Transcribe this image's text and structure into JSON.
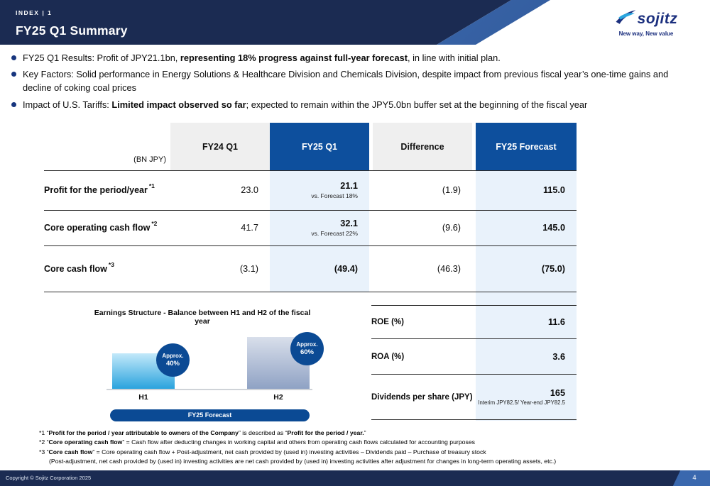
{
  "header": {
    "index_label": "INDEX | 1",
    "title": "FY25 Q1 Summary",
    "logo_text": "sojitz",
    "tagline": "New way, New value"
  },
  "bullets": [
    {
      "segments": [
        {
          "t": "FY25 Q1 Results: Profit of JPY21.1bn, "
        },
        {
          "t": "representing 18% progress against full-year forecast",
          "b": true
        },
        {
          "t": ", in line with initial plan."
        }
      ]
    },
    {
      "segments": [
        {
          "t": "Key Factors: Solid performance in Energy Solutions & Healthcare Division and Chemicals Division, despite impact from previous fiscal year’s one-time gains and decline of coking coal prices"
        }
      ]
    },
    {
      "segments": [
        {
          "t": "Impact of U.S. Tariffs: "
        },
        {
          "t": "Limited impact observed so far",
          "b": true
        },
        {
          "t": "; expected to remain within the JPY5.0bn buffer set at the beginning of the fiscal year"
        }
      ]
    }
  ],
  "table": {
    "unit_label": "(BN JPY)",
    "columns": [
      "FY24 Q1",
      "FY25 Q1",
      "Difference",
      "FY25 Forecast"
    ],
    "rows": [
      {
        "label": "Profit for the period/year",
        "note": "*1",
        "fy24": "23.0",
        "fy25": "21.1",
        "fy25_sub": "vs. Forecast 18%",
        "diff": "(1.9)",
        "forecast": "115.0"
      },
      {
        "label": "Core operating cash flow",
        "note": "*2",
        "fy24": "41.7",
        "fy25": "32.1",
        "fy25_sub": "vs. Forecast 22%",
        "diff": "(9.6)",
        "forecast": "145.0"
      },
      {
        "label": "Core cash flow",
        "note": "*3",
        "fy24": "(3.1)",
        "fy25": "(49.4)",
        "fy25_sub": "",
        "diff": "(46.3)",
        "forecast": "(75.0)"
      }
    ]
  },
  "metrics": [
    {
      "label": "ROE (%)",
      "value": "11.6",
      "sub": ""
    },
    {
      "label": "ROA (%)",
      "value": "3.6",
      "sub": ""
    },
    {
      "label": "Dividends per share (JPY)",
      "value": "165",
      "sub": "Interim JPY82.5/ Year-end JPY82.5"
    }
  ],
  "chart_data": {
    "type": "bar",
    "title": "Earnings Structure  - Balance between H1 and H2 of the fiscal year",
    "categories": [
      "H1",
      "H2"
    ],
    "values": [
      40,
      60
    ],
    "badges": [
      {
        "line1": "Approx.",
        "line2": "40%"
      },
      {
        "line1": "Approx.",
        "line2": "60%"
      }
    ],
    "footer_label": "FY25 Forecast",
    "ylim": [
      0,
      100
    ],
    "grid": false,
    "legend": "none"
  },
  "footnotes": [
    {
      "segments": [
        {
          "t": "*1 “"
        },
        {
          "t": "Profit for the period / year attributable to owners of the Company",
          "b": true
        },
        {
          "t": "” is described as “"
        },
        {
          "t": "Profit for the period / year.",
          "b": true
        },
        {
          "t": "”"
        }
      ]
    },
    {
      "segments": [
        {
          "t": "*2 “"
        },
        {
          "t": "Core operating cash flow",
          "b": true
        },
        {
          "t": "” = Cash flow after deducting changes in working capital and others from operating cash flows calculated for accounting purposes"
        }
      ]
    },
    {
      "segments": [
        {
          "t": "*3 “"
        },
        {
          "t": "Core cash flow",
          "b": true
        },
        {
          "t": "” = Core operating cash flow + Post-adjustment, net cash provided by (used in) investing activities – Dividends paid – Purchase of treasury stock"
        }
      ]
    },
    {
      "segments": [
        {
          "t": "(Post-adjustment, net cash provided by (used in) investing activities are net cash provided by (used in) investing activities after adjustment for changes in long-term operating assets, etc.)"
        }
      ]
    }
  ],
  "footer": {
    "copyright": "Copyright © Sojitz Corporation 2025",
    "page": "4"
  },
  "colors": {
    "navy": "#1b2b52",
    "header_blue": "#0d4f9d",
    "light_blue_bg": "#e9f2fb",
    "accent_cyan": "#2aa3dd",
    "bar_gray_blue": "#8fa2c4",
    "badge_blue": "#0b4a94"
  }
}
